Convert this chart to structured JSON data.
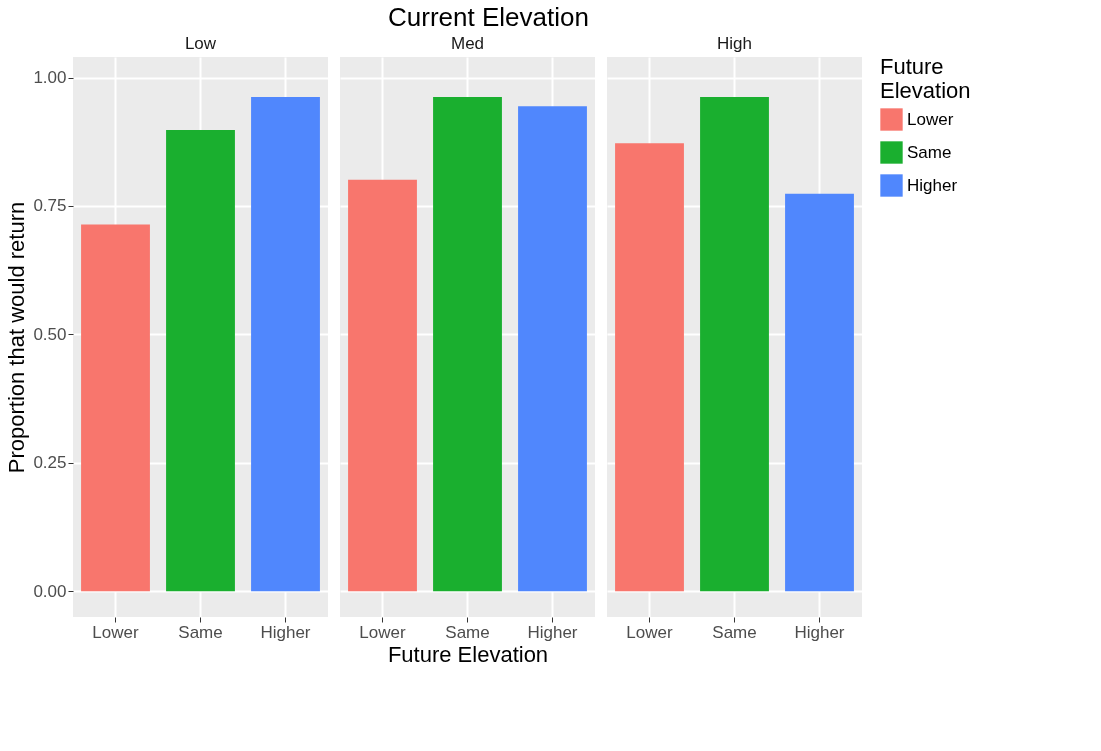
{
  "chart_data": [
    {
      "type": "bar",
      "subtitle": "Low",
      "legend_title": "Future Elevation",
      "legend": "right",
      "ylabel": "Proportion that would return",
      "categories": [
        "Lower",
        "Same",
        "Higher"
      ],
      "series": [
        {
          "name": "Lower",
          "color": "#f8766d",
          "values": [
            0.714,
            null,
            null
          ]
        },
        {
          "name": "Same",
          "color": "#1aaf2f",
          "values": [
            null,
            0.898,
            null
          ]
        },
        {
          "name": "Higher",
          "color": "#5087fd",
          "values": [
            null,
            null,
            0.962
          ]
        }
      ],
      "ylim": [
        -0.05,
        1.04
      ],
      "yticks": [
        {
          "value": 0,
          "label": "0.00"
        },
        {
          "value": 0.25,
          "label": "0.25"
        },
        {
          "value": 0.5,
          "label": "0.50"
        },
        {
          "value": 0.75,
          "label": "0.75"
        },
        {
          "value": 1,
          "label": "1.00"
        }
      ],
      "grid": true
    },
    {
      "type": "bar",
      "title": "Current Elevation",
      "subtitle": "Med",
      "xlabel": "Future Elevation",
      "categories": [
        "Lower",
        "Same",
        "Higher"
      ],
      "series": [
        {
          "color": "#f8766d",
          "values": [
            0.801,
            null,
            null
          ]
        },
        {
          "color": "#1aaf2f",
          "values": [
            null,
            0.962,
            null
          ]
        },
        {
          "color": "#5087fd",
          "values": [
            null,
            null,
            0.944
          ]
        }
      ],
      "ylim": [
        -0.05,
        1.04
      ],
      "yticks": [
        {
          "value": 0,
          "label": null
        },
        {
          "value": 0.25,
          "label": null
        },
        {
          "value": 0.5,
          "label": null
        },
        {
          "value": 0.75,
          "label": null
        },
        {
          "value": 1,
          "label": null
        }
      ],
      "grid": true,
      "tick_labels": "x"
    },
    {
      "type": "bar",
      "subtitle": "High",
      "categories": [
        "Lower",
        "Same",
        "Higher"
      ],
      "series": [
        {
          "color": "#f8766d",
          "values": [
            0.872,
            null,
            null
          ]
        },
        {
          "color": "#1aaf2f",
          "values": [
            null,
            0.962,
            null
          ]
        },
        {
          "color": "#5087fd",
          "values": [
            null,
            null,
            0.774
          ]
        }
      ],
      "ylim": [
        -0.05,
        1.04
      ],
      "yticks": [
        {
          "value": 0,
          "label": null
        },
        {
          "value": 0.25,
          "label": null
        },
        {
          "value": 0.5,
          "label": null
        },
        {
          "value": 0.75,
          "label": null
        },
        {
          "value": 1,
          "label": null
        }
      ],
      "grid": true,
      "tick_labels": "x"
    }
  ]
}
